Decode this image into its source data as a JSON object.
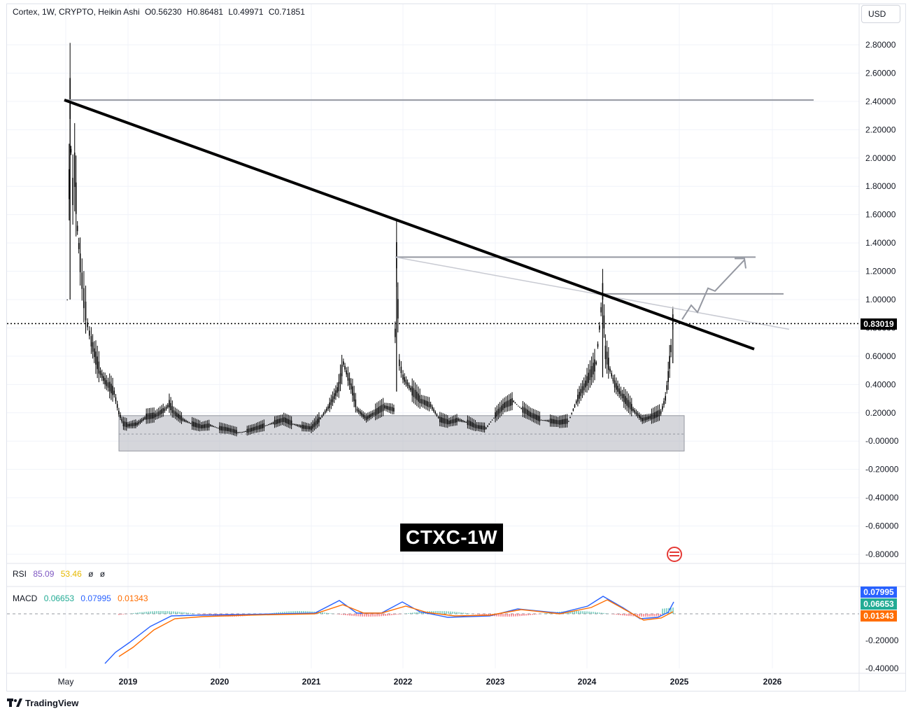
{
  "header": {
    "symbol": "Cortex, 1W, CRYPTO, Heikin Ashi",
    "open": "O0.56230",
    "high": "H0.86481",
    "low": "L0.49971",
    "close": "C0.71851"
  },
  "currency_button": "USD",
  "watermark_label": "CTXC-1W",
  "current_price_label": "0.83019",
  "rsi": {
    "label": "RSI",
    "v1": "85.09",
    "v2": "53.46",
    "v3": "ø",
    "v4": "ø",
    "colors": {
      "v1": "#7e57c2",
      "v2": "#f7c948"
    }
  },
  "macd": {
    "label": "MACD",
    "histogram": "0.06653",
    "macd": "0.07995",
    "signal": "0.01343",
    "colors": {
      "histogram": "#22ab94",
      "macd": "#2962ff",
      "signal": "#ff6d00"
    }
  },
  "footer_brand": "TradingView",
  "chart_data": {
    "type": "candlestick",
    "x_tick_labels": [
      "May",
      "2019",
      "2020",
      "2021",
      "2022",
      "2023",
      "2024",
      "2025",
      "2026"
    ],
    "y_tick_labels": [
      "2.80000",
      "2.60000",
      "2.40000",
      "2.20000",
      "2.00000",
      "1.80000",
      "1.60000",
      "1.40000",
      "1.20000",
      "1.00000",
      "0.80000",
      "0.60000",
      "0.40000",
      "0.20000",
      "-0.00000",
      "-0.20000",
      "-0.40000",
      "-0.60000",
      "-0.80000"
    ],
    "macd_y_tick_labels": [
      "-0.20000",
      "-0.40000"
    ],
    "ylim": [
      -0.85,
      2.95
    ],
    "price_series": [
      [
        2018.34,
        1.0
      ],
      [
        2018.36,
        1.8
      ],
      [
        2018.37,
        2.4
      ],
      [
        2018.38,
        2.05
      ],
      [
        2018.4,
        1.75
      ],
      [
        2018.42,
        1.9
      ],
      [
        2018.45,
        1.5
      ],
      [
        2018.48,
        1.25
      ],
      [
        2018.52,
        1.0
      ],
      [
        2018.56,
        0.82
      ],
      [
        2018.6,
        0.7
      ],
      [
        2018.65,
        0.58
      ],
      [
        2018.7,
        0.48
      ],
      [
        2018.75,
        0.42
      ],
      [
        2018.8,
        0.38
      ],
      [
        2018.85,
        0.34
      ],
      [
        2018.9,
        0.2
      ],
      [
        2018.95,
        0.12
      ],
      [
        2019.0,
        0.11
      ],
      [
        2019.1,
        0.12
      ],
      [
        2019.2,
        0.17
      ],
      [
        2019.3,
        0.18
      ],
      [
        2019.4,
        0.22
      ],
      [
        2019.45,
        0.26
      ],
      [
        2019.5,
        0.2
      ],
      [
        2019.6,
        0.15
      ],
      [
        2019.7,
        0.12
      ],
      [
        2019.8,
        0.1
      ],
      [
        2019.9,
        0.11
      ],
      [
        2020.0,
        0.09
      ],
      [
        2020.1,
        0.08
      ],
      [
        2020.2,
        0.06
      ],
      [
        2020.3,
        0.07
      ],
      [
        2020.4,
        0.09
      ],
      [
        2020.5,
        0.11
      ],
      [
        2020.6,
        0.13
      ],
      [
        2020.7,
        0.15
      ],
      [
        2020.8,
        0.12
      ],
      [
        2020.9,
        0.1
      ],
      [
        2021.0,
        0.09
      ],
      [
        2021.1,
        0.16
      ],
      [
        2021.2,
        0.25
      ],
      [
        2021.3,
        0.38
      ],
      [
        2021.35,
        0.55
      ],
      [
        2021.4,
        0.45
      ],
      [
        2021.45,
        0.35
      ],
      [
        2021.5,
        0.22
      ],
      [
        2021.6,
        0.16
      ],
      [
        2021.7,
        0.2
      ],
      [
        2021.8,
        0.24
      ],
      [
        2021.9,
        0.22
      ],
      [
        2021.93,
        1.3
      ],
      [
        2021.96,
        0.55
      ],
      [
        2022.0,
        0.45
      ],
      [
        2022.1,
        0.35
      ],
      [
        2022.2,
        0.28
      ],
      [
        2022.3,
        0.25
      ],
      [
        2022.4,
        0.15
      ],
      [
        2022.5,
        0.13
      ],
      [
        2022.6,
        0.15
      ],
      [
        2022.7,
        0.13
      ],
      [
        2022.8,
        0.1
      ],
      [
        2022.9,
        0.09
      ],
      [
        2023.0,
        0.18
      ],
      [
        2023.1,
        0.25
      ],
      [
        2023.2,
        0.28
      ],
      [
        2023.3,
        0.22
      ],
      [
        2023.4,
        0.18
      ],
      [
        2023.5,
        0.15
      ],
      [
        2023.6,
        0.14
      ],
      [
        2023.7,
        0.13
      ],
      [
        2023.8,
        0.14
      ],
      [
        2023.9,
        0.3
      ],
      [
        2024.0,
        0.42
      ],
      [
        2024.1,
        0.55
      ],
      [
        2024.17,
        1.05
      ],
      [
        2024.2,
        0.62
      ],
      [
        2024.25,
        0.5
      ],
      [
        2024.3,
        0.4
      ],
      [
        2024.4,
        0.3
      ],
      [
        2024.5,
        0.22
      ],
      [
        2024.6,
        0.15
      ],
      [
        2024.7,
        0.17
      ],
      [
        2024.8,
        0.2
      ],
      [
        2024.85,
        0.3
      ],
      [
        2024.88,
        0.45
      ],
      [
        2024.91,
        0.65
      ],
      [
        2024.93,
        0.86
      ],
      [
        2024.95,
        0.72
      ]
    ],
    "rsi_values": {
      "rsi": 85.09,
      "rsi_ma": 53.46
    },
    "macd_values": {
      "histogram": 0.06653,
      "macd": 0.07995,
      "signal": 0.01343
    }
  }
}
